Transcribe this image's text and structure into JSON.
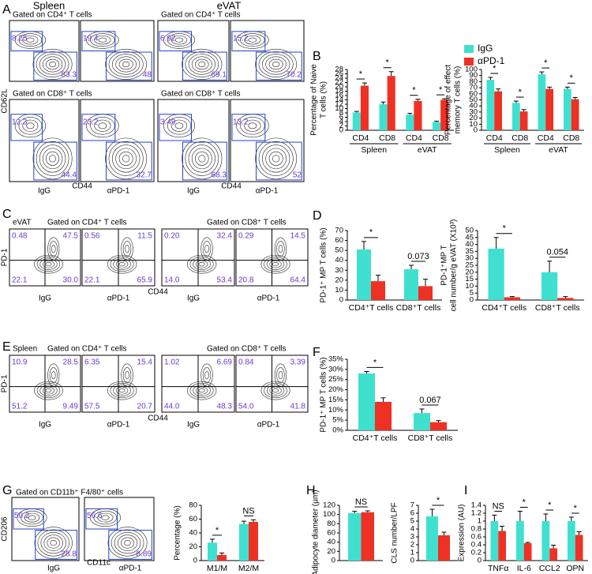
{
  "panel_labels": [
    "A",
    "B",
    "C",
    "D",
    "E",
    "F",
    "G",
    "H",
    "I"
  ],
  "flow_panels": {
    "A": {
      "columns": [
        "Spleen",
        "eVAT"
      ],
      "gates": [
        "Gated on CD4⁺ T cells",
        "Gated on CD4⁺ T cells",
        "Gated on CD8⁺ T cells",
        "Gated on CD8⁺ T cells"
      ],
      "y_axis": "CD62L",
      "x_axis": [
        "CD44",
        "CD44"
      ],
      "conditions": [
        "IgG",
        "αPD-1",
        "IgG",
        "αPD-1"
      ],
      "plots": [
        [
          "8.25",
          "83.3"
        ],
        [
          "19.4",
          "48"
        ],
        [
          "6.92",
          "69.1"
        ],
        [
          "15.2",
          "70.2"
        ],
        [
          "12.3",
          "44.4"
        ],
        [
          "23.2",
          "32.7"
        ],
        [
          "3.49",
          "68.3"
        ],
        [
          "13.2",
          "52"
        ]
      ]
    },
    "C": {
      "tissue": "eVAT",
      "gates": [
        "Gated on CD4⁺ T cells",
        "Gated on CD8⁺ T cells"
      ],
      "y_axis": "PD-1",
      "x_axis": "CD44",
      "conditions": [
        "IgG",
        "αPD-1",
        "IgG",
        "αPD-1"
      ],
      "plots": [
        [
          "0.48",
          "47.5",
          "22.1",
          "30.0"
        ],
        [
          "0.56",
          "11.5",
          "22.1",
          "65.9"
        ],
        [
          "0.20",
          "32.4",
          "14.0",
          "53.4"
        ],
        [
          "0.29",
          "14.5",
          "20.8",
          "64.4"
        ]
      ]
    },
    "E": {
      "tissue": "Spleen",
      "gates": [
        "Gated on CD4⁺ T cells",
        "Gated on CD8⁺ T cells"
      ],
      "y_axis": "PD-1",
      "x_axis": "CD44",
      "conditions": [
        "IgG",
        "αPD-1",
        "IgG",
        "αPD-1"
      ],
      "plots": [
        [
          "10.9",
          "28.5",
          "51.2",
          "9.49"
        ],
        [
          "6.35",
          "15.4",
          "57.5",
          "20.7"
        ],
        [
          "1.02",
          "6.69",
          "44.0",
          "48.3"
        ],
        [
          "0.84",
          "3.39",
          "54.0",
          "41.8"
        ]
      ]
    },
    "G": {
      "gate": "Gated on CD11b⁺ F4/80⁺ cells",
      "y_axis": "CD206",
      "x_axis": "CD11c",
      "conditions": [
        "IgG",
        "αPD-1"
      ],
      "plots": [
        [
          "50.2",
          "28.8"
        ],
        [
          "56.6",
          "8.89"
        ]
      ]
    }
  },
  "chart_data": [
    {
      "type": "bar",
      "ylabel": [
        "Percentage of Naive",
        "T cells (%)"
      ],
      "categories": [
        "CD4",
        "CD8",
        "CD4",
        "CD8"
      ],
      "groups": [
        "Spleen",
        "eVAT"
      ],
      "series": [
        {
          "color": "#40e0d0",
          "values": [
            8.2,
            12,
            7.2,
            3.8
          ],
          "errors": [
            0.5,
            1,
            0.6,
            0.4
          ]
        },
        {
          "color": "#ee3124",
          "values": [
            20.5,
            25,
            13.5,
            14
          ],
          "errors": [
            1.3,
            2,
            0.8,
            0.5
          ]
        }
      ],
      "annotations": [
        "*",
        "*",
        "*",
        "*"
      ],
      "ylim": [
        0,
        28
      ],
      "yticks": [
        0,
        2,
        4,
        6,
        8,
        10,
        12,
        14,
        16,
        18,
        20,
        22,
        24,
        26,
        28
      ]
    },
    {
      "type": "bar",
      "ylabel": [
        "Percentage of effect",
        "memory T cells (%)"
      ],
      "categories": [
        "CD4",
        "CD8",
        "CD4",
        "CD8"
      ],
      "groups": [
        "Spleen",
        "eVAT"
      ],
      "legend": "top",
      "series": [
        {
          "name": "IgG",
          "color": "#40e0d0",
          "values": [
            83,
            45,
            92,
            68
          ],
          "errors": [
            4,
            3,
            4,
            3
          ]
        },
        {
          "name": "αPD-1",
          "color": "#ee3124",
          "values": [
            64,
            31,
            68,
            51
          ],
          "errors": [
            4,
            3,
            3,
            3
          ]
        }
      ],
      "annotations": [
        "*",
        "*",
        "*",
        "*"
      ],
      "ylim": [
        0,
        100
      ],
      "yticks": [
        0,
        10,
        20,
        30,
        40,
        50,
        60,
        70,
        80,
        90,
        100
      ]
    },
    {
      "type": "bar",
      "ylabel": [
        "PD-1⁺ MP T cells (%)"
      ],
      "categories": [
        "CD4⁺T cells",
        "CD8⁺T cells"
      ],
      "series": [
        {
          "color": "#40e0d0",
          "values": [
            51,
            31
          ],
          "errors": [
            8,
            4
          ]
        },
        {
          "color": "#ee3124",
          "values": [
            19,
            14
          ],
          "errors": [
            6,
            7
          ]
        }
      ],
      "annotations": [
        "*",
        "0.073"
      ],
      "ylim": [
        0,
        70
      ],
      "yticks": [
        0,
        10,
        20,
        30,
        40,
        50,
        60,
        70
      ]
    },
    {
      "type": "bar",
      "ylabel": [
        "PD-1⁺MP T",
        "cell number/g eVAT (X10³)"
      ],
      "categories": [
        "CD4⁺T cells",
        "CD8⁺T cells"
      ],
      "series": [
        {
          "color": "#40e0d0",
          "values": [
            37,
            20
          ],
          "errors": [
            8,
            8
          ]
        },
        {
          "color": "#ee3124",
          "values": [
            2,
            1.5
          ],
          "errors": [
            0.5,
            1
          ]
        }
      ],
      "annotations": [
        "*",
        "0.054"
      ],
      "ylim": [
        0,
        50
      ],
      "yticks": [
        0,
        5,
        10,
        15,
        20,
        25,
        30,
        35,
        40,
        45,
        50
      ]
    },
    {
      "type": "bar",
      "ylabel": [
        "PD-1⁺ MP T cells (%)"
      ],
      "categories": [
        "CD4⁺T cells",
        "CD8⁺T cells"
      ],
      "series": [
        {
          "color": "#40e0d0",
          "values": [
            28,
            8.5
          ],
          "errors": [
            1,
            2
          ]
        },
        {
          "color": "#ee3124",
          "values": [
            14,
            4
          ],
          "errors": [
            2,
            0.8
          ]
        }
      ],
      "annotations": [
        "*",
        "0.067"
      ],
      "ylim": [
        0,
        35
      ],
      "yticks": [
        {
          "value": 0,
          "label": "0%"
        },
        {
          "value": 5,
          "label": "5%"
        },
        {
          "value": 10,
          "label": "10%"
        },
        {
          "value": 15,
          "label": "15%"
        },
        {
          "value": 20,
          "label": "20%"
        },
        {
          "value": 25,
          "label": "25%"
        },
        {
          "value": 30,
          "label": "30%"
        },
        {
          "value": 35,
          "label": "35%"
        }
      ]
    },
    {
      "type": "bar",
      "ylabel": [
        "Percentage (%)"
      ],
      "categories": [
        "M1/M",
        "M2/M"
      ],
      "series": [
        {
          "color": "#40e0d0",
          "values": [
            26,
            53
          ],
          "errors": [
            5,
            4
          ]
        },
        {
          "color": "#ee3124",
          "values": [
            8,
            56
          ],
          "errors": [
            3,
            3
          ]
        }
      ],
      "annotations": [
        "*",
        "NS"
      ],
      "ylim": [
        0,
        80
      ],
      "yticks": [
        0,
        20,
        40,
        60,
        80
      ]
    },
    {
      "type": "bar",
      "ylabel": [
        "Adipocyte diameter (μm)"
      ],
      "categories": [
        null
      ],
      "series": [
        {
          "color": "#40e0d0",
          "values": [
            103
          ],
          "errors": [
            4
          ]
        },
        {
          "color": "#ee3124",
          "values": [
            105
          ],
          "errors": [
            3
          ]
        }
      ],
      "annotations": [
        "NS"
      ],
      "ylim": [
        0,
        120
      ],
      "yticks": [
        0,
        20,
        40,
        60,
        80,
        100,
        120
      ]
    },
    {
      "type": "bar",
      "ylabel": [
        "CLS number/LPF"
      ],
      "categories": [
        null
      ],
      "series": [
        {
          "color": "#40e0d0",
          "values": [
            5.6
          ],
          "errors": [
            0.9
          ]
        },
        {
          "color": "#ee3124",
          "values": [
            3.2
          ],
          "errors": [
            0.4
          ]
        }
      ],
      "annotations": [
        "*"
      ],
      "ylim": [
        0,
        7
      ],
      "yticks": [
        0,
        1,
        2,
        3,
        4,
        5,
        6,
        7
      ]
    },
    {
      "type": "bar",
      "ylabel": [
        "Expression (AU)"
      ],
      "categories": [
        "TNFα",
        "IL-6",
        "CCL2",
        "OPN"
      ],
      "series": [
        {
          "color": "#40e0d0",
          "values": [
            1,
            1,
            1,
            1
          ],
          "errors": [
            0.15,
            0.25,
            0.18,
            0.1
          ]
        },
        {
          "color": "#ee3124",
          "values": [
            0.75,
            0.44,
            0.31,
            0.65
          ],
          "errors": [
            0.12,
            0.02,
            0.08,
            0.08
          ]
        }
      ],
      "annotations": [
        "NS",
        "*",
        "*",
        "*"
      ],
      "ylim": [
        0,
        1.4
      ],
      "yticks": [
        0,
        0.2,
        0.4,
        0.6,
        0.8,
        1,
        1.2,
        1.4
      ]
    }
  ]
}
